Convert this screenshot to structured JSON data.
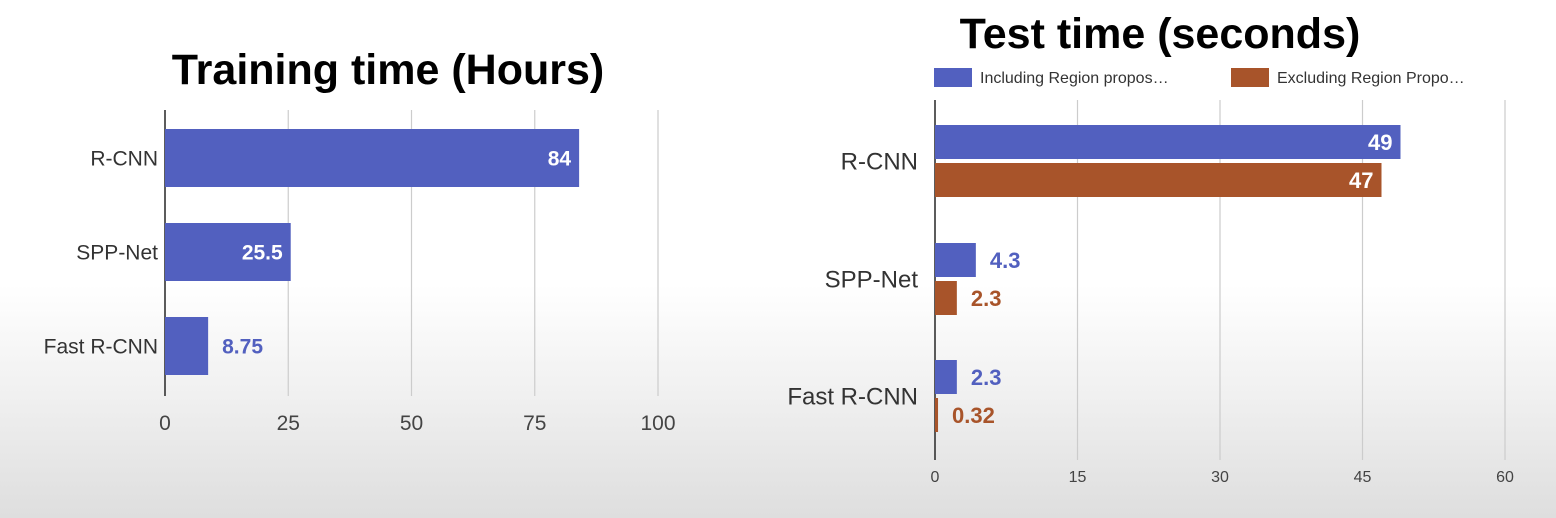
{
  "chart_data": [
    {
      "type": "bar",
      "orientation": "horizontal",
      "title": "Training time (Hours)",
      "categories": [
        "R-CNN",
        "SPP-Net",
        "Fast R-CNN"
      ],
      "series": [
        {
          "values": [
            84,
            25.5,
            8.75
          ],
          "labels": [
            "84",
            "25.5",
            "8.75"
          ],
          "color": "#5260bf"
        }
      ],
      "xlim": [
        0,
        100
      ],
      "ticks": [
        "0",
        "25",
        "50",
        "75",
        "100"
      ],
      "grid": true,
      "legend": "none"
    },
    {
      "type": "bar",
      "orientation": "horizontal",
      "title": "Test time (seconds)",
      "categories": [
        "R-CNN",
        "SPP-Net",
        "Fast R-CNN"
      ],
      "series": [
        {
          "name": "Including Region propos…",
          "values": [
            49,
            4.3,
            2.3
          ],
          "labels": [
            "49",
            "4.3",
            "2.3"
          ],
          "color": "#5260bf"
        },
        {
          "name": "Excluding Region Propo…",
          "values": [
            47,
            2.3,
            0.32
          ],
          "labels": [
            "47",
            "2.3",
            "0.32"
          ],
          "color": "#a8542a"
        }
      ],
      "xlim": [
        0,
        60
      ],
      "ticks": [
        "0",
        "15",
        "30",
        "45",
        "60"
      ],
      "grid": true,
      "legend": "top-left"
    }
  ]
}
